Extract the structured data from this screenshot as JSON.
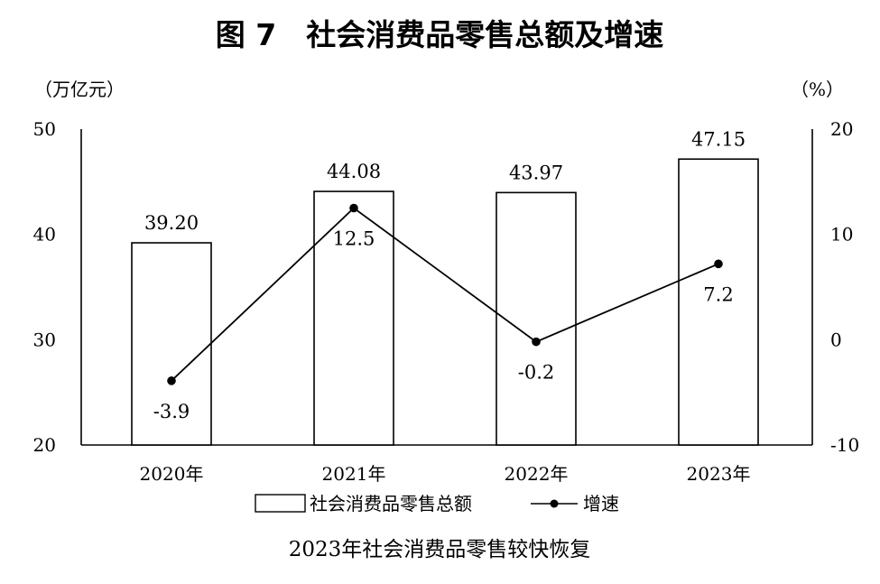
{
  "chart_data": {
    "type": "bar",
    "title": "图 7　社会消费品零售总额及增速",
    "caption": "2023年社会消费品零售较快恢复",
    "y_left_unit": "（万亿元）",
    "y_right_unit": "（%）",
    "categories": [
      "2020年",
      "2021年",
      "2022年",
      "2023年"
    ],
    "ylim_left": [
      20,
      50
    ],
    "yticks_left": [
      50,
      40,
      30,
      20
    ],
    "ylim_right": [
      -10,
      20
    ],
    "yticks_right": [
      20,
      10,
      0,
      -10
    ],
    "series": [
      {
        "name": "社会消费品零售总额",
        "type": "bar",
        "axis": "left",
        "values": [
          39.2,
          44.08,
          43.97,
          47.15
        ],
        "labels": [
          "39.20",
          "44.08",
          "43.97",
          "47.15"
        ]
      },
      {
        "name": "增速",
        "type": "line",
        "axis": "right",
        "values": [
          -3.9,
          12.5,
          -0.2,
          7.2
        ],
        "labels": [
          "-3.9",
          "12.5",
          "-0.2",
          "7.2"
        ]
      }
    ],
    "grid": false,
    "legend_position": "bottom"
  },
  "colors": {
    "bar_fill": "#ffffff",
    "bar_stroke": "#000000",
    "line": "#000000",
    "axis": "#000000",
    "text": "#111111"
  }
}
